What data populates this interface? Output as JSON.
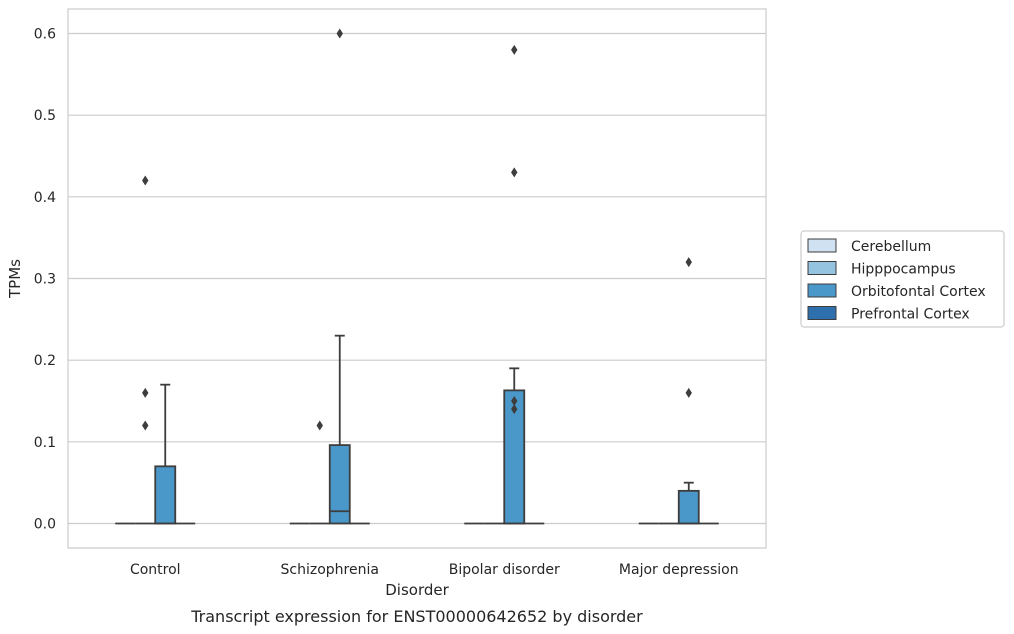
{
  "chart_data": {
    "type": "boxplot",
    "title": "",
    "caption": "Transcript expression for ENST00000642652 by disorder",
    "xlabel": "Disorder",
    "ylabel": "TPMs",
    "ylim": [
      -0.03,
      0.63
    ],
    "yticks": [
      0.0,
      0.1,
      0.2,
      0.3,
      0.4,
      0.5,
      0.6
    ],
    "ytick_labels": [
      "0.0",
      "0.1",
      "0.2",
      "0.3",
      "0.4",
      "0.5",
      "0.6"
    ],
    "grid": "horizontal",
    "legend_position": "right",
    "categories": [
      "Control",
      "Schizophrenia",
      "Bipolar disorder",
      "Major depression"
    ],
    "series": [
      {
        "name": "Cerebellum",
        "color": "#d0e1f2",
        "boxes": [
          {
            "q1": 0,
            "median": 0,
            "q3": 0,
            "whisker_low": 0,
            "whisker_high": 0,
            "outliers": []
          },
          {
            "q1": 0,
            "median": 0,
            "q3": 0,
            "whisker_low": 0,
            "whisker_high": 0,
            "outliers": []
          },
          {
            "q1": 0,
            "median": 0,
            "q3": 0,
            "whisker_low": 0,
            "whisker_high": 0,
            "outliers": []
          },
          {
            "q1": 0,
            "median": 0,
            "q3": 0,
            "whisker_low": 0,
            "whisker_high": 0,
            "outliers": []
          }
        ]
      },
      {
        "name": "Hipppocampus",
        "color": "#94c4df",
        "boxes": [
          {
            "q1": 0,
            "median": 0,
            "q3": 0,
            "whisker_low": 0,
            "whisker_high": 0,
            "outliers": [
              0.12,
              0.16,
              0.42
            ]
          },
          {
            "q1": 0,
            "median": 0,
            "q3": 0,
            "whisker_low": 0,
            "whisker_high": 0,
            "outliers": [
              0.12
            ]
          },
          {
            "q1": 0,
            "median": 0,
            "q3": 0,
            "whisker_low": 0,
            "whisker_high": 0,
            "outliers": []
          },
          {
            "q1": 0,
            "median": 0,
            "q3": 0,
            "whisker_low": 0,
            "whisker_high": 0,
            "outliers": []
          }
        ]
      },
      {
        "name": "Orbitofontal Cortex",
        "color": "#4a98c9",
        "boxes": [
          {
            "q1": 0,
            "median": 0,
            "q3": 0.07,
            "whisker_low": 0,
            "whisker_high": 0.17,
            "outliers": []
          },
          {
            "q1": 0,
            "median": 0.015,
            "q3": 0.096,
            "whisker_low": 0,
            "whisker_high": 0.23,
            "outliers": [
              0.6
            ]
          },
          {
            "q1": 0,
            "median": 0,
            "q3": 0.163,
            "whisker_low": 0,
            "whisker_high": 0.19,
            "outliers": [
              0.14,
              0.15,
              0.43,
              0.58
            ]
          },
          {
            "q1": 0,
            "median": 0,
            "q3": 0.04,
            "whisker_low": 0,
            "whisker_high": 0.05,
            "outliers": [
              0.16,
              0.32
            ]
          }
        ]
      },
      {
        "name": "Prefrontal Cortex",
        "color": "#2e6fad",
        "boxes": [
          {
            "q1": 0,
            "median": 0,
            "q3": 0,
            "whisker_low": 0,
            "whisker_high": 0,
            "outliers": []
          },
          {
            "q1": 0,
            "median": 0,
            "q3": 0,
            "whisker_low": 0,
            "whisker_high": 0,
            "outliers": []
          },
          {
            "q1": 0,
            "median": 0,
            "q3": 0,
            "whisker_low": 0,
            "whisker_high": 0,
            "outliers": []
          },
          {
            "q1": 0,
            "median": 0,
            "q3": 0,
            "whisker_low": 0,
            "whisker_high": 0,
            "outliers": []
          }
        ]
      }
    ]
  }
}
